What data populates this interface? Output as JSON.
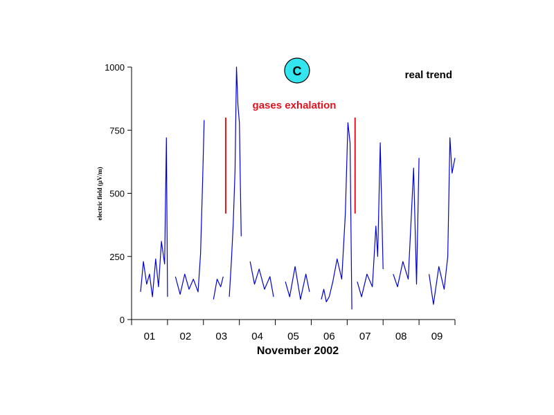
{
  "chart_data": {
    "type": "line",
    "xlabel": "November 2002",
    "ylabel": "electric field (µV/m)",
    "xlim": [
      0,
      9
    ],
    "ylim": [
      0,
      1000
    ],
    "y_ticks": [
      0,
      250,
      500,
      750,
      1000
    ],
    "x_tick_labels": [
      "01",
      "02",
      "03",
      "04",
      "05",
      "06",
      "07",
      "08",
      "09"
    ],
    "grid": false,
    "badge": "C",
    "corner_label": "real trend",
    "annotation": {
      "label": "gases exhalation",
      "markers_x": [
        2.62,
        6.22
      ],
      "marker_range": [
        420,
        800
      ]
    },
    "series": [
      {
        "color": "#0000d0",
        "segments": [
          {
            "x": [
              0.25,
              0.33,
              0.42,
              0.5,
              0.58,
              0.67,
              0.75,
              0.83,
              0.92,
              0.97,
              1.0
            ],
            "y": [
              110,
              230,
              140,
              180,
              90,
              240,
              130,
              310,
              220,
              720,
              90
            ]
          },
          {
            "x": [
              1.22,
              1.35,
              1.48,
              1.6,
              1.72,
              1.85,
              1.92,
              1.98,
              2.02
            ],
            "y": [
              170,
              100,
              180,
              120,
              160,
              110,
              260,
              560,
              790
            ]
          },
          {
            "x": [
              2.28,
              2.38,
              2.48,
              2.55
            ],
            "y": [
              80,
              160,
              130,
              170
            ]
          },
          {
            "x": [
              2.72,
              2.78,
              2.83,
              2.88,
              2.92,
              2.96,
              3.0,
              3.05
            ],
            "y": [
              90,
              240,
              380,
              590,
              1000,
              850,
              780,
              330
            ]
          },
          {
            "x": [
              3.3,
              3.42,
              3.55,
              3.7,
              3.85,
              3.95
            ],
            "y": [
              230,
              140,
              200,
              120,
              170,
              90
            ]
          },
          {
            "x": [
              4.28,
              4.4,
              4.55,
              4.7,
              4.85,
              4.95
            ],
            "y": [
              150,
              90,
              210,
              80,
              180,
              110
            ]
          },
          {
            "x": [
              5.28,
              5.35,
              5.42,
              5.5,
              5.6,
              5.72,
              5.85,
              5.95,
              6.02,
              6.08,
              6.13
            ],
            "y": [
              80,
              120,
              70,
              90,
              150,
              240,
              160,
              420,
              780,
              700,
              40
            ]
          },
          {
            "x": [
              6.28,
              6.4,
              6.55,
              6.7,
              6.8,
              6.85,
              6.92,
              7.0
            ],
            "y": [
              150,
              90,
              180,
              130,
              370,
              250,
              700,
              200
            ]
          },
          {
            "x": [
              7.28,
              7.4,
              7.55,
              7.7,
              7.85,
              7.93,
              8.0
            ],
            "y": [
              180,
              130,
              230,
              160,
              600,
              140,
              640
            ]
          },
          {
            "x": [
              8.28,
              8.4,
              8.55,
              8.7,
              8.8,
              8.86,
              8.92,
              9.0
            ],
            "y": [
              180,
              60,
              210,
              120,
              250,
              720,
              580,
              640
            ]
          }
        ]
      }
    ]
  }
}
